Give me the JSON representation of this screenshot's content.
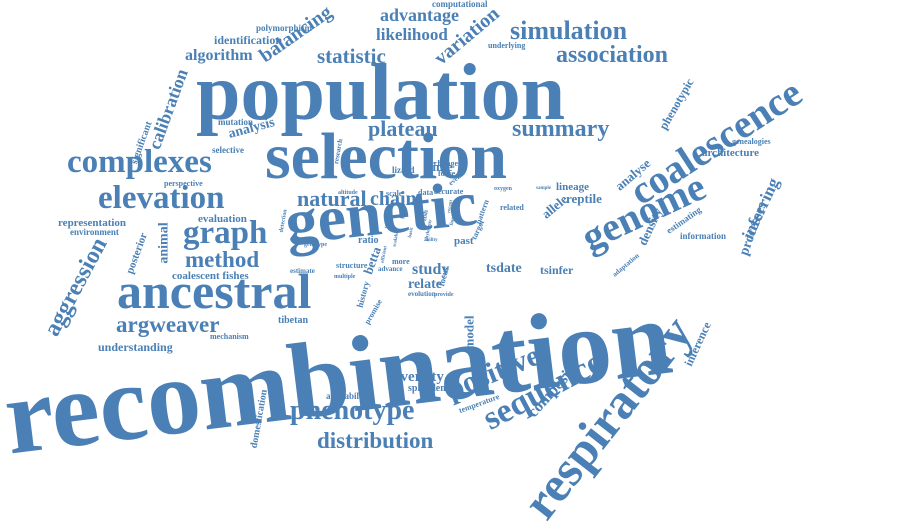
{
  "cloud": {
    "color": "#4a80b5",
    "words": [
      "recombination",
      "population",
      "selection",
      "genetic",
      "ancestral",
      "respiratory",
      "coalescence",
      "genome",
      "sequence",
      "positive",
      "complexes",
      "elevation",
      "graph",
      "argweaver",
      "phenotype",
      "distribution",
      "summary",
      "simulation",
      "association",
      "statistic",
      "method",
      "plateau",
      "natural",
      "chain",
      "aggression",
      "diversity",
      "variation",
      "balancing",
      "advantage",
      "likelihood",
      "algorithm",
      "identification",
      "polymorphism",
      "calibration",
      "analysis",
      "understanding",
      "study",
      "relate",
      "tsdate",
      "tsinfer",
      "composite",
      "inferring",
      "processes",
      "density",
      "architecture",
      "phenotypic",
      "analyse",
      "model",
      "animal",
      "coalescent fishes",
      "posterior",
      "representation",
      "environment",
      "evaluation",
      "perspective",
      "mutation",
      "selective",
      "significant",
      "computational",
      "underlying",
      "inference",
      "genealogies",
      "lineage",
      "reptile",
      "estimating",
      "information",
      "allele",
      "domestication",
      "availability",
      "splendens",
      "temperature",
      "mechanism",
      "tibetan",
      "betta",
      "ratio",
      "past",
      "time",
      "scale",
      "data",
      "change",
      "force",
      "lizard",
      "accurate",
      "oxygen",
      "related",
      "history",
      "evolution",
      "promise",
      "advance",
      "more",
      "structure",
      "multiple",
      "estimate",
      "genotype",
      "research",
      "detection",
      "altitude",
      "target",
      "fish",
      "pattern",
      "focus",
      "provide",
      "sample",
      "adaptation",
      "feet",
      "crossover",
      "event",
      "scalable",
      "basic",
      "phylogeny",
      "ability",
      "recent",
      "finer",
      "efficient",
      "human"
    ]
  }
}
